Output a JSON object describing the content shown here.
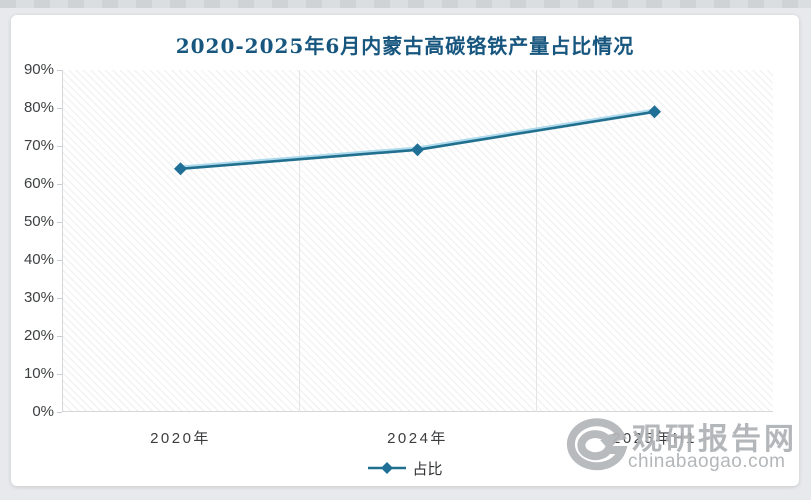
{
  "page": {
    "background_color": "#e7e9ec",
    "card_background": "#ffffff"
  },
  "chart": {
    "title": "2020-2025年6月内蒙古高碳铬铁产量占比情况",
    "title_color": "#17567e"
  },
  "chart_data": {
    "type": "line",
    "title": "2020-2025年6月内蒙古高碳铬铁产量占比情况",
    "categories": [
      "2020年",
      "2024年",
      "2025年H1"
    ],
    "series": [
      {
        "name": "占比",
        "values": [
          64,
          69,
          79
        ]
      }
    ],
    "xlabel": "",
    "ylabel": "",
    "ylim": [
      0,
      90
    ],
    "ytick_step": 10,
    "ytick_suffix": "%",
    "grid": "vertical-band-boundaries-only",
    "legend_position": "bottom-center",
    "line_color": "#21708f",
    "marker": "diamond",
    "marker_color": "#1f6f96",
    "plot_hatch": "diagonal-light-gray"
  },
  "legend": {
    "label": "占比"
  },
  "watermark": {
    "site_name": "观研报告网",
    "site_domain": "chinabaogao.com",
    "logo": "swirl-g-logo",
    "color": "#aeb1b4"
  }
}
